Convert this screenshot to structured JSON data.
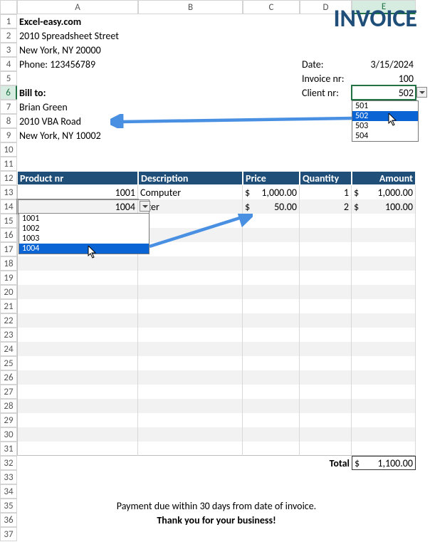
{
  "columns": [
    "A",
    "B",
    "C",
    "D",
    "E"
  ],
  "rows": 37,
  "company": {
    "name": "Excel-easy.com",
    "street": "2010 Spreadsheet Street",
    "city": "New York, NY 20000",
    "phone": "Phone: 123456789"
  },
  "title": "INVOICE",
  "meta": {
    "date_label": "Date:",
    "date_value": "3/15/2024",
    "invoice_label": "Invoice nr:",
    "invoice_value": "100",
    "client_label": "Client nr:",
    "client_value": "502"
  },
  "billto": {
    "label": "Bill to:",
    "name": "Brian Green",
    "street": "2010 VBA Road",
    "city": "New York, NY 10002"
  },
  "client_dropdown": {
    "options": [
      "501",
      "502",
      "503",
      "504"
    ],
    "selected_index": 1
  },
  "table": {
    "headers": {
      "product": "Product nr",
      "description": "Description",
      "price": "Price",
      "quantity": "Quantity",
      "amount": "Amount"
    },
    "rows": [
      {
        "product": "1001",
        "description": "Computer",
        "price": "1,000.00",
        "quantity": "1",
        "amount": "1,000.00"
      },
      {
        "product": "1004",
        "description": "inter",
        "price": "50.00",
        "quantity": "2",
        "amount": "100.00"
      }
    ],
    "empty_rows": 18
  },
  "product_dropdown": {
    "options": [
      "1001",
      "1002",
      "1003",
      "1004"
    ],
    "selected_index": 3
  },
  "total": {
    "label": "Total",
    "value": "1,100.00"
  },
  "footer": {
    "line1": "Payment due within 30 days from date of invoice.",
    "line2": "Thank you for your business!"
  },
  "colors": {
    "header_bg": "#1f4e79",
    "invoice_title": "#1f4e79",
    "band": "#f2f2f2",
    "arrow": "#4a90e2",
    "selection": "#217346",
    "dd_sel": "#0a64d4"
  }
}
